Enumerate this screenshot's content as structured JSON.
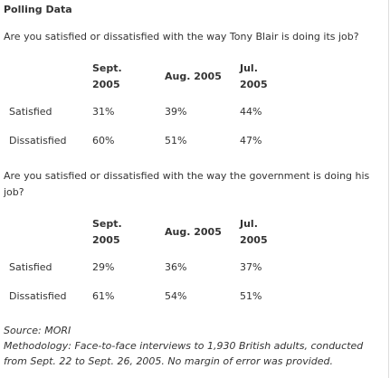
{
  "title": "Polling Data",
  "tables": [
    {
      "question": "Are you satisfied or dissatisfied with the way Tony Blair is doing its job?",
      "headers": [
        "",
        "Sept.\n2005",
        "Aug. 2005",
        "Jul.\n2005"
      ],
      "rows": [
        {
          "label": "Satisfied",
          "values": [
            "31%",
            "39%",
            "44%"
          ]
        },
        {
          "label": "Dissatisfied",
          "values": [
            "60%",
            "51%",
            "47%"
          ]
        }
      ]
    },
    {
      "question": "Are you satisfied or dissatisfied with the way the government is doing his job?",
      "headers": [
        "",
        "Sept.\n2005",
        "Aug. 2005",
        "Jul.\n2005"
      ],
      "rows": [
        {
          "label": "Satisfied",
          "values": [
            "29%",
            "36%",
            "37%"
          ]
        },
        {
          "label": "Dissatisfied",
          "values": [
            "61%",
            "54%",
            "51%"
          ]
        }
      ]
    }
  ],
  "source": "Source: MORI",
  "methodology": "Methodology: Face-to-face interviews to 1,930 British adults, conducted from Sept. 22 to Sept. 26, 2005. No margin of error was provided."
}
